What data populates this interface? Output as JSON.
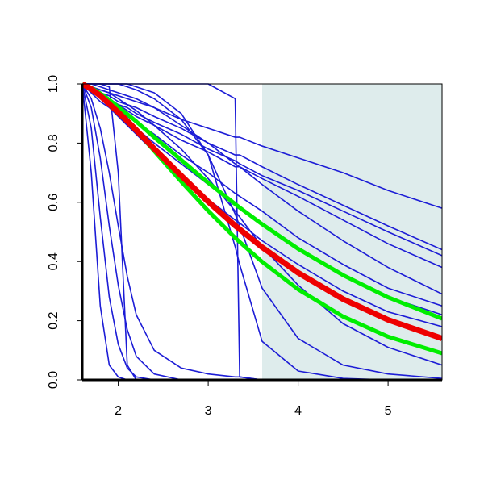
{
  "chart_data": {
    "type": "line",
    "x": [
      1.6,
      1.7,
      1.8,
      1.9,
      2.0,
      2.1,
      2.2,
      2.4,
      2.7,
      3.0,
      3.3,
      3.35,
      3.6,
      4.0,
      4.5,
      5.0,
      5.6
    ],
    "xlim": [
      1.6,
      5.6
    ],
    "xticks": [
      2,
      3,
      4,
      5
    ],
    "ylim": [
      0,
      1
    ],
    "yticks": [
      {
        "value": 0,
        "label": "0.0"
      },
      {
        "value": 0.2,
        "label": "0.2"
      },
      {
        "value": 0.4,
        "label": "0.4"
      },
      {
        "value": 0.6,
        "label": "0.6"
      },
      {
        "value": 0.8,
        "label": "0.8"
      },
      {
        "value": 1,
        "label": "1.0"
      }
    ],
    "shaded_x": [
      3.6,
      5.6
    ],
    "shade_color": "#deecec",
    "series": [
      {
        "color": "#1c1cd6",
        "values": [
          1,
          0.99,
          0.98,
          0.97,
          0.96,
          0.95,
          0.94,
          0.92,
          0.88,
          0.85,
          0.82,
          0.82,
          0.79,
          0.75,
          0.7,
          0.64,
          0.58
        ]
      },
      {
        "color": "#1c1cd6",
        "values": [
          1,
          0.99,
          0.97,
          0.96,
          0.94,
          0.93,
          0.92,
          0.89,
          0.85,
          0.8,
          0.76,
          0.76,
          0.72,
          0.66,
          0.59,
          0.52,
          0.44
        ]
      },
      {
        "color": "#1c1cd6",
        "values": [
          1,
          0.98,
          0.96,
          0.95,
          0.93,
          0.92,
          0.9,
          0.87,
          0.83,
          0.78,
          0.74,
          0.73,
          0.69,
          0.64,
          0.57,
          0.5,
          0.42
        ]
      },
      {
        "color": "#1c1cd6",
        "values": [
          1,
          0.98,
          0.96,
          0.94,
          0.93,
          0.91,
          0.89,
          0.86,
          0.81,
          0.77,
          0.72,
          0.72,
          0.68,
          0.62,
          0.54,
          0.46,
          0.38
        ]
      },
      {
        "color": "#1c1cd6",
        "values": [
          1,
          1,
          0.99,
          0.98,
          0.97,
          0.96,
          0.95,
          0.92,
          0.86,
          0.8,
          0.73,
          0.72,
          0.66,
          0.57,
          0.47,
          0.38,
          0.29
        ]
      },
      {
        "color": "#1c1cd6",
        "values": [
          1,
          0.98,
          0.95,
          0.93,
          0.91,
          0.89,
          0.87,
          0.83,
          0.76,
          0.7,
          0.63,
          0.62,
          0.57,
          0.48,
          0.39,
          0.31,
          0.25
        ]
      },
      {
        "color": "#1c1cd6",
        "values": [
          1,
          0.98,
          0.95,
          0.93,
          0.9,
          0.88,
          0.85,
          0.8,
          0.73,
          0.66,
          0.59,
          0.58,
          0.53,
          0.44,
          0.35,
          0.28,
          0.22
        ]
      },
      {
        "color": "#1c1cd6",
        "values": [
          1,
          0.97,
          0.94,
          0.92,
          0.89,
          0.86,
          0.83,
          0.77,
          0.69,
          0.61,
          0.54,
          0.53,
          0.47,
          0.39,
          0.3,
          0.23,
          0.18
        ]
      },
      {
        "color": "#1c1cd6",
        "values": [
          1,
          0.99,
          0.98,
          0.97,
          0.95,
          0.93,
          0.91,
          0.86,
          0.78,
          0.68,
          0.57,
          0.55,
          0.45,
          0.32,
          0.19,
          0.11,
          0.05
        ]
      },
      {
        "color": "#1c1cd6",
        "values": [
          1,
          1,
          1,
          1,
          1,
          0.99,
          0.98,
          0.95,
          0.88,
          0.76,
          0.56,
          0.52,
          0.31,
          0.14,
          0.05,
          0.02,
          0.005
        ]
      },
      {
        "color": "#1c1cd6",
        "values": [
          1,
          1,
          1,
          1,
          1,
          1,
          0.99,
          0.97,
          0.9,
          0.76,
          0.45,
          0.39,
          0.13,
          0.03,
          0.005,
          0,
          0
        ]
      },
      {
        "color": "#1c1cd6",
        "values": [
          1,
          1,
          1,
          1,
          1,
          1,
          1,
          1,
          1,
          1,
          0.95,
          0.01,
          0,
          0,
          0,
          0,
          0
        ]
      },
      {
        "color": "#1c1cd6",
        "values": [
          1,
          1,
          1,
          0.99,
          0.7,
          0.05,
          0,
          0,
          0,
          0,
          0,
          0,
          0,
          0,
          0,
          0,
          0
        ]
      },
      {
        "color": "#1c1cd6",
        "values": [
          1,
          0.7,
          0.25,
          0.05,
          0.01,
          0,
          0,
          0,
          0,
          0,
          0,
          0,
          0,
          0,
          0,
          0,
          0
        ]
      },
      {
        "color": "#1c1cd6",
        "values": [
          1,
          0.85,
          0.55,
          0.28,
          0.12,
          0.04,
          0.01,
          0,
          0,
          0,
          0,
          0,
          0,
          0,
          0,
          0,
          0
        ]
      },
      {
        "color": "#1c1cd6",
        "values": [
          1,
          0.92,
          0.75,
          0.52,
          0.32,
          0.17,
          0.08,
          0.02,
          0,
          0,
          0,
          0,
          0,
          0,
          0,
          0,
          0
        ]
      },
      {
        "color": "#1c1cd6",
        "values": [
          1,
          0.95,
          0.85,
          0.7,
          0.52,
          0.35,
          0.22,
          0.1,
          0.04,
          0.02,
          0.01,
          0.01,
          0,
          0,
          0,
          0,
          0
        ]
      },
      {
        "color": "#00ee00",
        "values": [
          1,
          0.986,
          0.963,
          0.936,
          0.907,
          0.875,
          0.844,
          0.773,
          0.67,
          0.571,
          0.48,
          0.466,
          0.399,
          0.306,
          0.214,
          0.146,
          0.09
        ]
      },
      {
        "color": "#00ee00",
        "values": [
          1,
          0.987,
          0.968,
          0.946,
          0.922,
          0.898,
          0.873,
          0.82,
          0.743,
          0.666,
          0.594,
          0.582,
          0.526,
          0.443,
          0.354,
          0.279,
          0.207
        ]
      },
      {
        "color": "#ee0000",
        "values": [
          1,
          0.983,
          0.96,
          0.932,
          0.904,
          0.875,
          0.844,
          0.781,
          0.69,
          0.602,
          0.521,
          0.509,
          0.448,
          0.362,
          0.273,
          0.203,
          0.14
        ]
      }
    ]
  }
}
